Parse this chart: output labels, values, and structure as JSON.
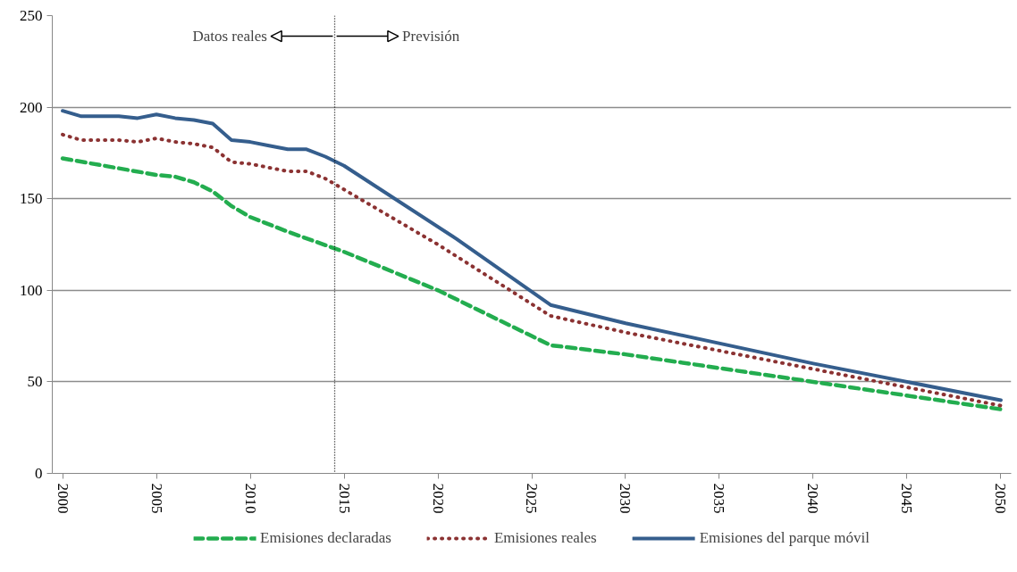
{
  "chart_data": {
    "type": "line",
    "xlim": [
      1999.45,
      2050.55
    ],
    "xticks": [
      2000,
      2005,
      2010,
      2015,
      2020,
      2025,
      2030,
      2035,
      2040,
      2045,
      2050
    ],
    "ylim": [
      0,
      250
    ],
    "yticks": [
      0,
      50,
      100,
      150,
      200,
      250
    ],
    "grid": "y",
    "legend": "bottom",
    "marker": "none",
    "series": [
      {
        "name": "Emisiones declaradas",
        "color": "#23ad4f",
        "line_style": "dashed",
        "x": [
          2000,
          2005,
          2006,
          2007,
          2008,
          2009,
          2010,
          2012,
          2015,
          2020,
          2021,
          2025,
          2026,
          2030,
          2040,
          2050
        ],
        "values": [
          172,
          163,
          162,
          159,
          154,
          146,
          140,
          132,
          121,
          100,
          95,
          75,
          70,
          65,
          50,
          35
        ]
      },
      {
        "name": "Emisiones reales",
        "color": "#8b3232",
        "line_style": "dotted",
        "x": [
          2000,
          2001,
          2002,
          2003,
          2004,
          2005,
          2006,
          2007,
          2008,
          2009,
          2010,
          2011,
          2012,
          2013,
          2014,
          2015,
          2020,
          2026,
          2030,
          2040,
          2050
        ],
        "values": [
          185,
          182,
          182,
          182,
          181,
          183,
          181,
          180,
          178,
          170,
          169,
          167,
          165,
          165,
          161,
          155,
          125,
          86,
          77,
          57,
          37
        ]
      },
      {
        "name": "Emisiones del parque móvil",
        "color": "#355e8d",
        "line_style": "solid",
        "x": [
          2000,
          2001,
          2002,
          2003,
          2004,
          2005,
          2006,
          2007,
          2008,
          2009,
          2010,
          2011,
          2012,
          2013,
          2014,
          2015,
          2021,
          2026,
          2030,
          2040,
          2050
        ],
        "values": [
          198,
          195,
          195,
          195,
          194,
          196,
          194,
          193,
          191,
          182,
          181,
          179,
          177,
          177,
          173,
          168,
          128,
          92,
          82,
          60,
          40
        ]
      }
    ],
    "ref_lines": [
      {
        "axis": "x",
        "value": 2014.5,
        "color": "#000000",
        "line_style": "dotted"
      }
    ],
    "annotations": [
      "Datos reales",
      "Previsión"
    ]
  }
}
